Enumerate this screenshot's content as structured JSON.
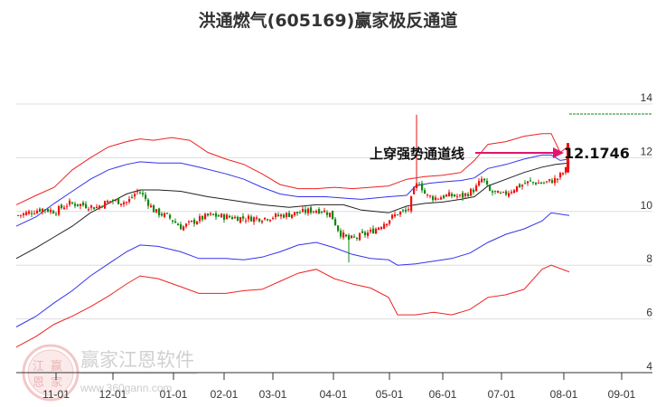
{
  "title": "洪通燃气(605169)赢家极反通道",
  "watermark": {
    "name": "赢家江恩软件",
    "url": "www.360gann.com",
    "logo_chars": [
      "江",
      "赢",
      "恩",
      "家"
    ]
  },
  "annotation": {
    "label": "上穿强势通道线",
    "value": "12.1746",
    "arrow_color": "#e0156e"
  },
  "colors": {
    "outer_band": "#ee2222",
    "inner_band": "#3333ee",
    "mid_line": "#222222",
    "candle_up": "#ee1111",
    "candle_down": "#118811",
    "grid": "#dddddd",
    "ref_line": "#118811"
  },
  "chart_data": {
    "type": "candlestick",
    "title": "洪通燃气(605169)赢家极反通道",
    "xlabel": "",
    "ylabel": "",
    "ylim": [
      4,
      14.5
    ],
    "y_ticks": [
      4,
      6,
      8,
      10,
      12,
      14
    ],
    "x_ticks": [
      "11-01",
      "12-01",
      "01-01",
      "02-01",
      "03-01",
      "04-01",
      "05-01",
      "06-01",
      "07-01",
      "08-01",
      "09-01"
    ],
    "grid": true,
    "legend": "none",
    "annotations": [
      {
        "text": "上穿强势通道线",
        "points_to": 12.1746
      },
      {
        "text": "12.1746",
        "type": "price_label"
      }
    ],
    "series": [
      {
        "name": "outer_upper_band",
        "color": "#ee2222",
        "points": [
          [
            18,
            10.25
          ],
          [
            40,
            10.6
          ],
          [
            60,
            10.9
          ],
          [
            80,
            11.55
          ],
          [
            100,
            12.0
          ],
          [
            120,
            12.4
          ],
          [
            140,
            12.6
          ],
          [
            155,
            12.7
          ],
          [
            170,
            12.65
          ],
          [
            190,
            12.75
          ],
          [
            210,
            12.65
          ],
          [
            230,
            12.2
          ],
          [
            250,
            11.95
          ],
          [
            270,
            11.75
          ],
          [
            290,
            11.4
          ],
          [
            310,
            11.0
          ],
          [
            330,
            10.85
          ],
          [
            350,
            10.85
          ],
          [
            370,
            10.9
          ],
          [
            390,
            10.85
          ],
          [
            410,
            10.9
          ],
          [
            430,
            10.95
          ],
          [
            450,
            11.2
          ],
          [
            470,
            11.3
          ],
          [
            490,
            11.35
          ],
          [
            510,
            11.45
          ],
          [
            525,
            11.9
          ],
          [
            540,
            12.5
          ],
          [
            560,
            12.6
          ],
          [
            580,
            12.8
          ],
          [
            600,
            12.9
          ],
          [
            610,
            12.9
          ],
          [
            620,
            12.2
          ],
          [
            630,
            12.45
          ]
        ]
      },
      {
        "name": "inner_upper_band",
        "color": "#3333ee",
        "points": [
          [
            18,
            9.45
          ],
          [
            40,
            9.8
          ],
          [
            60,
            10.3
          ],
          [
            80,
            10.75
          ],
          [
            100,
            11.2
          ],
          [
            120,
            11.55
          ],
          [
            140,
            11.75
          ],
          [
            155,
            11.85
          ],
          [
            175,
            11.8
          ],
          [
            200,
            11.8
          ],
          [
            220,
            11.65
          ],
          [
            250,
            11.4
          ],
          [
            270,
            11.2
          ],
          [
            290,
            10.9
          ],
          [
            310,
            10.65
          ],
          [
            330,
            10.55
          ],
          [
            360,
            10.55
          ],
          [
            380,
            10.5
          ],
          [
            400,
            10.45
          ],
          [
            430,
            10.55
          ],
          [
            450,
            10.6
          ],
          [
            460,
            10.95
          ],
          [
            475,
            11.05
          ],
          [
            490,
            11.1
          ],
          [
            510,
            11.15
          ],
          [
            525,
            11.25
          ],
          [
            540,
            11.6
          ],
          [
            560,
            11.75
          ],
          [
            580,
            11.95
          ],
          [
            600,
            12.1
          ],
          [
            610,
            12.1
          ],
          [
            620,
            11.9
          ],
          [
            630,
            11.95
          ]
        ]
      },
      {
        "name": "middle_line",
        "color": "#222222",
        "points": [
          [
            18,
            8.25
          ],
          [
            40,
            8.65
          ],
          [
            60,
            9.05
          ],
          [
            80,
            9.45
          ],
          [
            100,
            9.95
          ],
          [
            120,
            10.3
          ],
          [
            140,
            10.65
          ],
          [
            155,
            10.8
          ],
          [
            175,
            10.8
          ],
          [
            200,
            10.75
          ],
          [
            230,
            10.55
          ],
          [
            260,
            10.4
          ],
          [
            290,
            10.25
          ],
          [
            320,
            10.15
          ],
          [
            350,
            10.25
          ],
          [
            380,
            10.25
          ],
          [
            400,
            10.05
          ],
          [
            430,
            9.95
          ],
          [
            450,
            10.2
          ],
          [
            470,
            10.3
          ],
          [
            490,
            10.35
          ],
          [
            510,
            10.45
          ],
          [
            525,
            10.55
          ],
          [
            540,
            10.95
          ],
          [
            560,
            11.2
          ],
          [
            580,
            11.45
          ],
          [
            600,
            11.65
          ],
          [
            615,
            11.75
          ],
          [
            630,
            11.8
          ]
        ]
      },
      {
        "name": "inner_lower_band",
        "color": "#3333ee",
        "points": [
          [
            18,
            5.7
          ],
          [
            40,
            6.1
          ],
          [
            60,
            6.6
          ],
          [
            80,
            7.05
          ],
          [
            100,
            7.6
          ],
          [
            120,
            8.05
          ],
          [
            140,
            8.5
          ],
          [
            155,
            8.75
          ],
          [
            175,
            8.7
          ],
          [
            200,
            8.5
          ],
          [
            220,
            8.25
          ],
          [
            250,
            8.25
          ],
          [
            270,
            8.2
          ],
          [
            290,
            8.3
          ],
          [
            310,
            8.5
          ],
          [
            330,
            8.75
          ],
          [
            350,
            8.85
          ],
          [
            370,
            8.65
          ],
          [
            390,
            8.4
          ],
          [
            410,
            8.25
          ],
          [
            430,
            8.2
          ],
          [
            440,
            8.0
          ],
          [
            460,
            8.05
          ],
          [
            480,
            8.15
          ],
          [
            500,
            8.25
          ],
          [
            520,
            8.45
          ],
          [
            540,
            8.85
          ],
          [
            560,
            9.15
          ],
          [
            580,
            9.35
          ],
          [
            600,
            9.65
          ],
          [
            610,
            9.95
          ],
          [
            630,
            9.85
          ]
        ]
      },
      {
        "name": "outer_lower_band",
        "color": "#ee2222",
        "points": [
          [
            18,
            4.95
          ],
          [
            40,
            5.35
          ],
          [
            60,
            5.8
          ],
          [
            80,
            6.1
          ],
          [
            100,
            6.45
          ],
          [
            120,
            6.85
          ],
          [
            140,
            7.3
          ],
          [
            155,
            7.6
          ],
          [
            175,
            7.5
          ],
          [
            200,
            7.2
          ],
          [
            220,
            6.95
          ],
          [
            250,
            6.95
          ],
          [
            270,
            7.05
          ],
          [
            290,
            7.1
          ],
          [
            310,
            7.4
          ],
          [
            330,
            7.7
          ],
          [
            350,
            7.85
          ],
          [
            370,
            7.5
          ],
          [
            390,
            7.3
          ],
          [
            410,
            7.15
          ],
          [
            430,
            6.8
          ],
          [
            440,
            6.15
          ],
          [
            460,
            6.15
          ],
          [
            480,
            6.25
          ],
          [
            500,
            6.15
          ],
          [
            520,
            6.35
          ],
          [
            540,
            6.8
          ],
          [
            560,
            6.9
          ],
          [
            580,
            7.1
          ],
          [
            600,
            7.85
          ],
          [
            610,
            8.0
          ],
          [
            630,
            7.75
          ]
        ]
      },
      {
        "name": "price_close",
        "color": "#ee1111",
        "points": [
          [
            18,
            9.85
          ],
          [
            30,
            9.95
          ],
          [
            45,
            10.1
          ],
          [
            60,
            10.0
          ],
          [
            75,
            10.3
          ],
          [
            90,
            10.25
          ],
          [
            105,
            10.15
          ],
          [
            120,
            10.4
          ],
          [
            140,
            10.35
          ],
          [
            152,
            10.8
          ],
          [
            158,
            10.55
          ],
          [
            170,
            10.0
          ],
          [
            185,
            9.8
          ],
          [
            200,
            9.4
          ],
          [
            215,
            9.65
          ],
          [
            230,
            9.85
          ],
          [
            250,
            9.8
          ],
          [
            270,
            9.75
          ],
          [
            290,
            9.75
          ],
          [
            310,
            9.85
          ],
          [
            330,
            9.95
          ],
          [
            345,
            10.05
          ],
          [
            355,
            10.05
          ],
          [
            365,
            9.9
          ],
          [
            375,
            9.2
          ],
          [
            385,
            8.95
          ],
          [
            395,
            9.05
          ],
          [
            410,
            9.25
          ],
          [
            425,
            9.6
          ],
          [
            440,
            9.95
          ],
          [
            450,
            10.0
          ],
          [
            458,
            10.9
          ],
          [
            463,
            11.1
          ],
          [
            470,
            10.6
          ],
          [
            480,
            10.5
          ],
          [
            495,
            10.6
          ],
          [
            510,
            10.55
          ],
          [
            525,
            10.85
          ],
          [
            533,
            11.25
          ],
          [
            540,
            10.75
          ],
          [
            555,
            10.6
          ],
          [
            570,
            10.9
          ],
          [
            585,
            11.1
          ],
          [
            600,
            11.05
          ],
          [
            615,
            11.2
          ],
          [
            625,
            11.55
          ],
          [
            630,
            12.1746
          ]
        ]
      }
    ],
    "key_values": {
      "last_price_marker": 12.1746,
      "max_spike_high": 13.6,
      "min_spike_low": 8.1
    }
  }
}
